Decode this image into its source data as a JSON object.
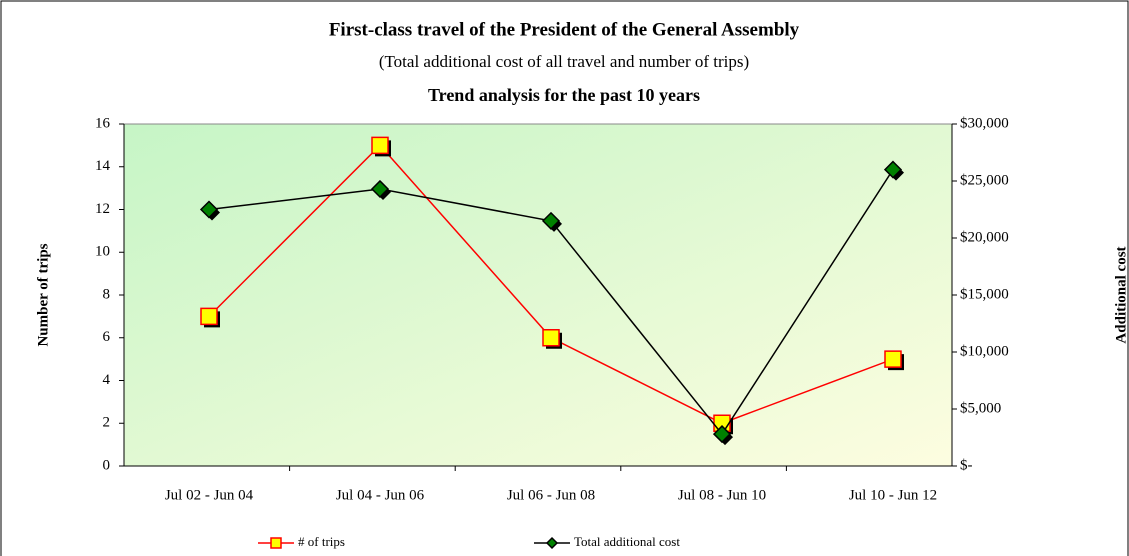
{
  "chart_data": {
    "type": "line",
    "title": "First-class travel of the President of the General Assembly",
    "subtitle": "(Total additional cost of all travel and number of trips)",
    "subtitle2": "Trend analysis for the past 10 years",
    "y_label": "Number of trips",
    "y2_label": "Additional cost",
    "categories": [
      "Jul 02 - Jun 04",
      "Jul 04 - Jun 06",
      "Jul 06  - Jun 08",
      "Jul 08 - Jun 10",
      "Jul 10 - Jun 12"
    ],
    "series": [
      {
        "name": "# of trips",
        "color": "#ff0000",
        "marker_fill": "#ffff00",
        "marker": "square",
        "values": [
          7,
          15,
          6,
          2,
          5
        ]
      },
      {
        "name": "Total additional cost",
        "color": "#000000",
        "marker_fill": "#008000",
        "marker": "diamond",
        "axis": "y2",
        "values": [
          22500,
          24300,
          21500,
          2800,
          26000
        ]
      }
    ],
    "ylim": [
      0,
      16
    ],
    "yticks": [
      0,
      2,
      4,
      6,
      8,
      10,
      12,
      14,
      16
    ],
    "y2lim": [
      0,
      30000
    ],
    "y2ticks": [
      {
        "value": 0,
        "label": "$-"
      },
      {
        "value": 5000,
        "label": "$5,000"
      },
      {
        "value": 10000,
        "label": "$10,000"
      },
      {
        "value": 15000,
        "label": "$15,000"
      },
      {
        "value": 20000,
        "label": "$20,000"
      },
      {
        "value": 25000,
        "label": "$25,000"
      },
      {
        "value": 30000,
        "label": "$30,000"
      }
    ],
    "legend": "bottom"
  }
}
